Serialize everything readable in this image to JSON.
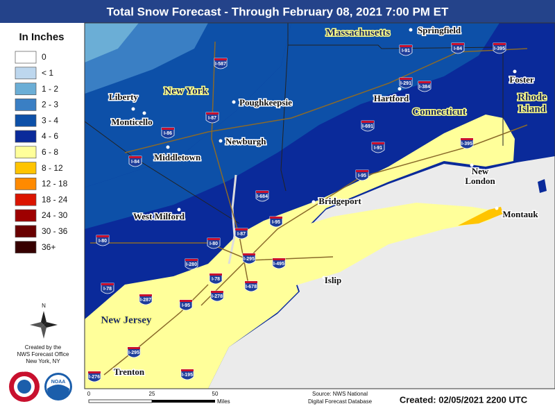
{
  "header": {
    "title": "Total Snow Forecast - Through February 08, 2021 7:00 PM ET"
  },
  "legend": {
    "title": "In Inches",
    "items": [
      {
        "label": "0",
        "color": "#ffffff"
      },
      {
        "label": "< 1",
        "color": "#bdd7ee"
      },
      {
        "label": "1 - 2",
        "color": "#6baed6"
      },
      {
        "label": "2 - 3",
        "color": "#3a7fc4"
      },
      {
        "label": "3 - 4",
        "color": "#0d50a8"
      },
      {
        "label": "4 - 6",
        "color": "#0a2a9a"
      },
      {
        "label": "6 - 8",
        "color": "#ffff9a"
      },
      {
        "label": "8 - 12",
        "color": "#ffc400"
      },
      {
        "label": "12 - 18",
        "color": "#ff8a00"
      },
      {
        "label": "18 - 24",
        "color": "#db1400"
      },
      {
        "label": "24 - 30",
        "color": "#9e0000"
      },
      {
        "label": "30 - 36",
        "color": "#690000"
      },
      {
        "label": "36+",
        "color": "#360000"
      }
    ]
  },
  "map": {
    "states": [
      {
        "lines": [
          "Massachusetts"
        ]
      },
      {
        "lines": [
          "New York"
        ]
      },
      {
        "lines": [
          "Connecticut"
        ]
      },
      {
        "lines": [
          "Rhode",
          "Island"
        ]
      },
      {
        "lines": [
          "New Jersey"
        ]
      }
    ],
    "cities": [
      {
        "lines": [
          "Springfield"
        ]
      },
      {
        "lines": [
          "Liberty"
        ]
      },
      {
        "lines": [
          "Monticello"
        ]
      },
      {
        "lines": [
          "Poughkeepsie"
        ]
      },
      {
        "lines": [
          "Hartford"
        ]
      },
      {
        "lines": [
          "Newburgh"
        ]
      },
      {
        "lines": [
          "Middletown"
        ]
      },
      {
        "lines": [
          "Foster"
        ]
      },
      {
        "lines": [
          "New",
          "London"
        ]
      },
      {
        "lines": [
          "Bridgeport"
        ]
      },
      {
        "lines": [
          "West Milford"
        ]
      },
      {
        "lines": [
          "Islip"
        ]
      },
      {
        "lines": [
          "Montauk"
        ]
      },
      {
        "lines": [
          "Trenton"
        ]
      }
    ],
    "interstates": [
      "I-587",
      "I-87",
      "I-86",
      "I-84",
      "I-91",
      "I-84",
      "I-395",
      "I-291",
      "I-384",
      "I-691",
      "I-91",
      "I-395",
      "I-95",
      "I-684",
      "I-95",
      "I-87",
      "I-80",
      "I-80",
      "I-295",
      "I-495",
      "I-280",
      "I-78",
      "I-678",
      "I-278",
      "I-78",
      "I-287",
      "I-95",
      "I-295",
      "I-276",
      "I-195"
    ]
  },
  "compass": "N",
  "credits": [
    "Created by the",
    "NWS Forecast Office",
    "New York, NY"
  ],
  "logos": [
    "NATIONAL WEATHER SERVICE",
    "NOAA"
  ],
  "scale": {
    "labels": [
      "0",
      "25",
      "50"
    ],
    "unit": "Miles"
  },
  "source": [
    "Source: NWS National",
    "Digital Forecast Database"
  ],
  "created": "Created: 02/05/2021 2200 UTC"
}
